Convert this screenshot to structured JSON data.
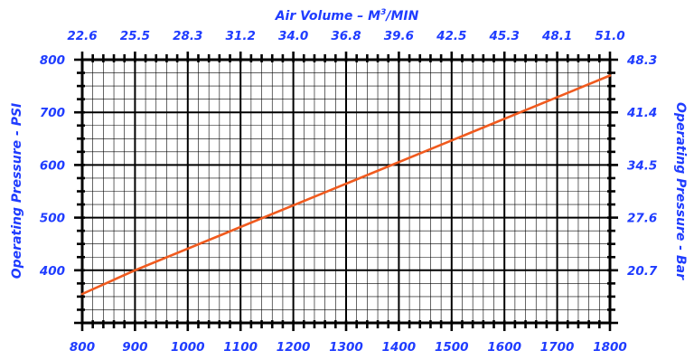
{
  "chart_data": {
    "type": "line",
    "top_axis_title_base": "Air Volume – M",
    "top_axis_title_sup": "3",
    "top_axis_title_tail": "/MIN",
    "left_axis_title": "Operating Pressure - PSI",
    "right_axis_title": "Operating Pressure - Bar",
    "x_ticks": [
      "800",
      "900",
      "1000",
      "1100",
      "1200",
      "1300",
      "1400",
      "1500",
      "1600",
      "1700",
      "1800"
    ],
    "top_ticks": [
      "22.6",
      "25.5",
      "28.3",
      "31.2",
      "34.0",
      "36.8",
      "39.6",
      "42.5",
      "45.3",
      "48.1",
      "51.0"
    ],
    "left_ticks": [
      "800",
      "700",
      "600",
      "500",
      "400"
    ],
    "right_ticks": [
      "48.3",
      "41.4",
      "34.5",
      "27.6",
      "20.7"
    ],
    "xlim": [
      800,
      1800
    ],
    "ylim": [
      300,
      800
    ],
    "grid": true,
    "series": [
      {
        "x": [
          800,
          900,
          1800
        ],
        "y": [
          355,
          400,
          770
        ],
        "color": "#f05a1e"
      }
    ],
    "text_color": "#1f3cff"
  }
}
